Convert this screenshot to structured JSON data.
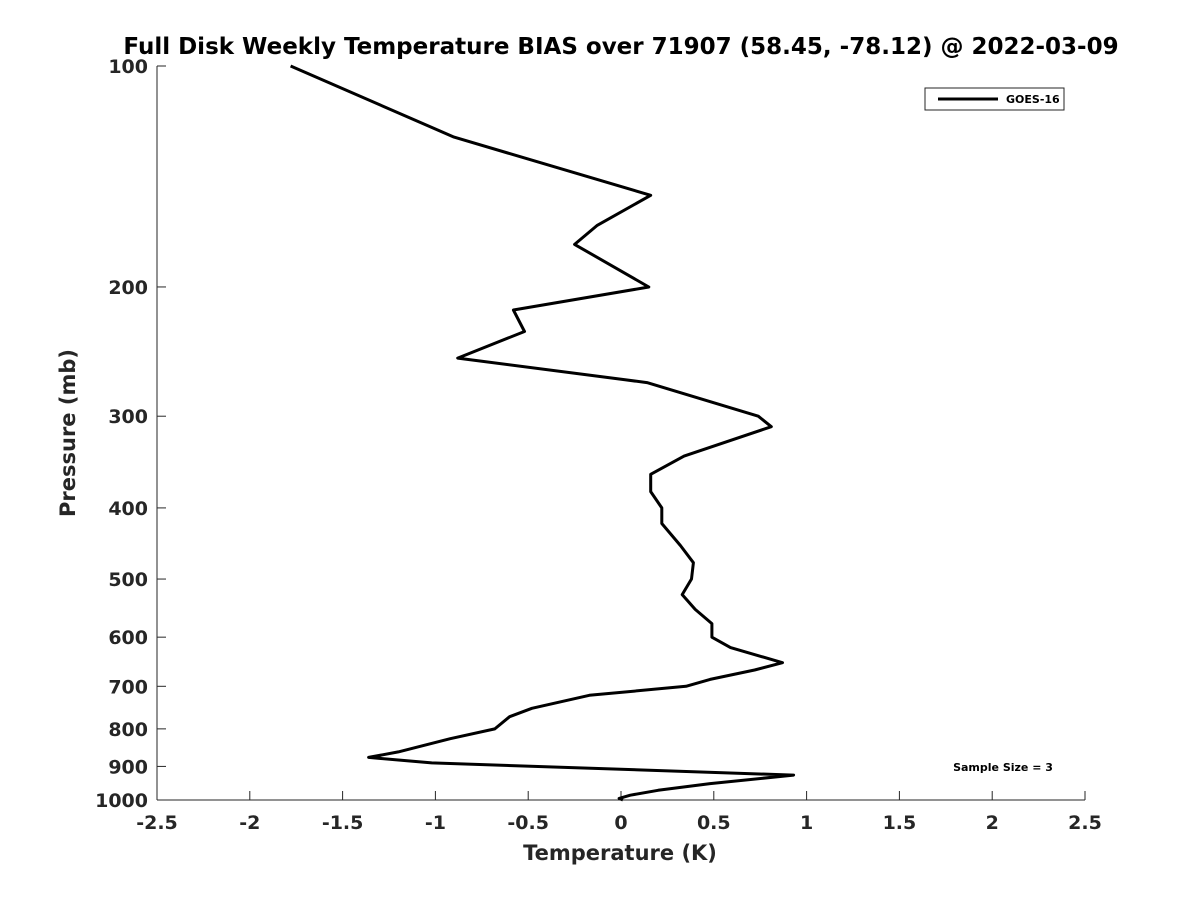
{
  "chart_data": {
    "type": "line",
    "title": "Full Disk Weekly Temperature BIAS over 71907 (58.45, -78.12) @ 2022-03-09",
    "xlabel": "Temperature (K)",
    "ylabel": "Pressure (mb)",
    "xlim": [
      -2.5,
      2.5
    ],
    "ylim": [
      100,
      1000
    ],
    "y_scale": "log",
    "y_reversed": true,
    "grid": false,
    "x_ticks": [
      -2.5,
      -2,
      -1.5,
      -1,
      -0.5,
      0,
      0.5,
      1,
      1.5,
      2,
      2.5
    ],
    "x_tick_labels": [
      "-2.5",
      "-2",
      "-1.5",
      "-1",
      "-0.5",
      "0",
      "0.5",
      "1",
      "1.5",
      "2",
      "2.5"
    ],
    "y_ticks": [
      100,
      200,
      300,
      400,
      500,
      600,
      700,
      800,
      900,
      1000
    ],
    "y_tick_labels": [
      "100",
      "200",
      "300",
      "400",
      "500",
      "600",
      "700",
      "800",
      "900",
      "1000"
    ],
    "legend_position": "top-right",
    "annotation": "Sample Size = 3",
    "series": [
      {
        "name": "GOES-16",
        "color": "#000000",
        "points": [
          {
            "x": -1.78,
            "y": 100
          },
          {
            "x": -0.9,
            "y": 125
          },
          {
            "x": 0.16,
            "y": 150
          },
          {
            "x": -0.13,
            "y": 165
          },
          {
            "x": -0.25,
            "y": 175
          },
          {
            "x": 0.15,
            "y": 200
          },
          {
            "x": -0.58,
            "y": 215
          },
          {
            "x": -0.52,
            "y": 230
          },
          {
            "x": -0.88,
            "y": 250
          },
          {
            "x": 0.14,
            "y": 270
          },
          {
            "x": 0.74,
            "y": 300
          },
          {
            "x": 0.81,
            "y": 310
          },
          {
            "x": 0.34,
            "y": 340
          },
          {
            "x": 0.16,
            "y": 360
          },
          {
            "x": 0.16,
            "y": 380
          },
          {
            "x": 0.22,
            "y": 400
          },
          {
            "x": 0.22,
            "y": 420
          },
          {
            "x": 0.32,
            "y": 450
          },
          {
            "x": 0.39,
            "y": 475
          },
          {
            "x": 0.38,
            "y": 500
          },
          {
            "x": 0.33,
            "y": 525
          },
          {
            "x": 0.4,
            "y": 550
          },
          {
            "x": 0.49,
            "y": 575
          },
          {
            "x": 0.49,
            "y": 600
          },
          {
            "x": 0.59,
            "y": 620
          },
          {
            "x": 0.87,
            "y": 650
          },
          {
            "x": 0.72,
            "y": 665
          },
          {
            "x": 0.48,
            "y": 685
          },
          {
            "x": 0.35,
            "y": 700
          },
          {
            "x": -0.17,
            "y": 720
          },
          {
            "x": -0.48,
            "y": 750
          },
          {
            "x": -0.6,
            "y": 770
          },
          {
            "x": -0.68,
            "y": 800
          },
          {
            "x": -0.92,
            "y": 825
          },
          {
            "x": -1.2,
            "y": 860
          },
          {
            "x": -1.36,
            "y": 875
          },
          {
            "x": -1.02,
            "y": 890
          },
          {
            "x": 0.93,
            "y": 925
          },
          {
            "x": 0.48,
            "y": 950
          },
          {
            "x": 0.2,
            "y": 970
          },
          {
            "x": 0.05,
            "y": 985
          },
          {
            "x": -0.01,
            "y": 995
          },
          {
            "x": 0.01,
            "y": 1000
          }
        ]
      }
    ]
  }
}
